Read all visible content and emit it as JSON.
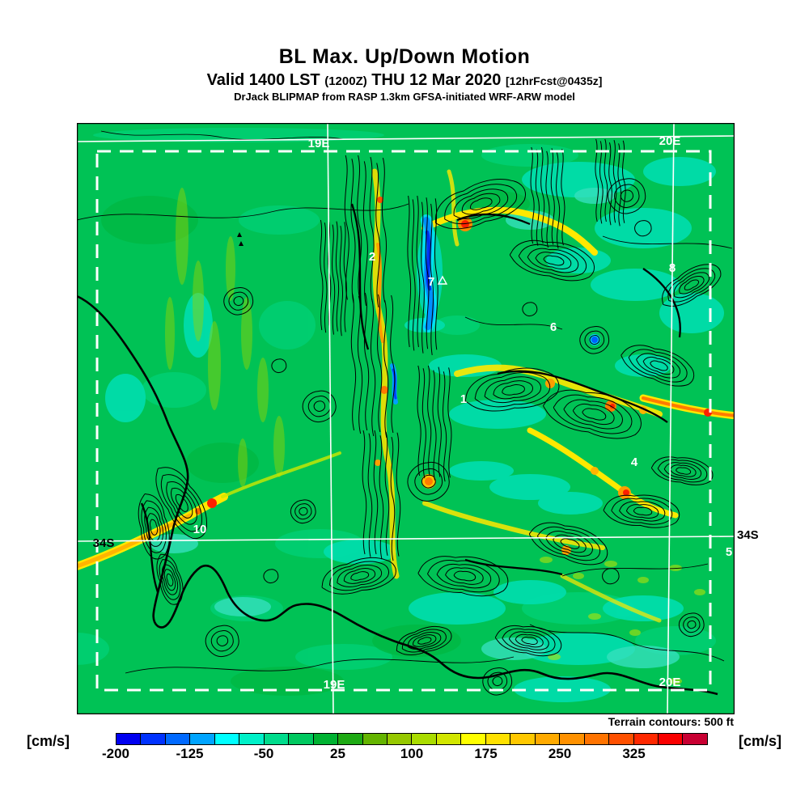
{
  "header": {
    "title": "BL Max. Up/Down Motion",
    "valid_prefix": "Valid 1400 LST",
    "valid_zulu": "(1200Z)",
    "valid_date": "THU 12 Mar 2020",
    "forecast_tag": "[12hrFcst@0435z]",
    "model_line": "DrJack BLIPMAP from RASP 1.3km GFSA-initiated WRF-ARW model"
  },
  "map": {
    "grid": {
      "lon_top_left": "19E",
      "lon_top_right": "20E",
      "lon_bottom_left": "19E",
      "lon_bottom_right": "20E",
      "lat_left": "34S",
      "lat_right": "34S"
    },
    "sites": {
      "s1": "1",
      "s2": "2",
      "s4": "4",
      "s5": "5",
      "s6": "6",
      "s7": "7",
      "s8": "8",
      "s10": "10"
    }
  },
  "terrain_note": "Terrain contours: 500 ft",
  "colorbar": {
    "unit_left": "[cm/s]",
    "unit_right": "[cm/s]",
    "ticks": [
      "-200",
      "-125",
      "-50",
      "25",
      "100",
      "175",
      "250",
      "325"
    ],
    "tick_interval_cms": 75,
    "colors": [
      "#0000f0",
      "#0032ff",
      "#0069ff",
      "#00a4ff",
      "#00ffff",
      "#00f0c8",
      "#00dc8c",
      "#00c85f",
      "#00b232",
      "#1eaa14",
      "#64b400",
      "#96c800",
      "#aadc00",
      "#d2e600",
      "#ffff00",
      "#ffe100",
      "#ffc800",
      "#ffaa00",
      "#ff9100",
      "#ff7300",
      "#ff5000",
      "#ff2800",
      "#fa0000",
      "#c80032"
    ]
  },
  "palette": {
    "map_base_green": "#00c255",
    "updraft_yellow": "#ffe800",
    "strong_updraft_red": "#ff2000",
    "sink_blue": "#0030f0",
    "grid_line_white": "#ffffff",
    "contour_black": "#000000"
  }
}
